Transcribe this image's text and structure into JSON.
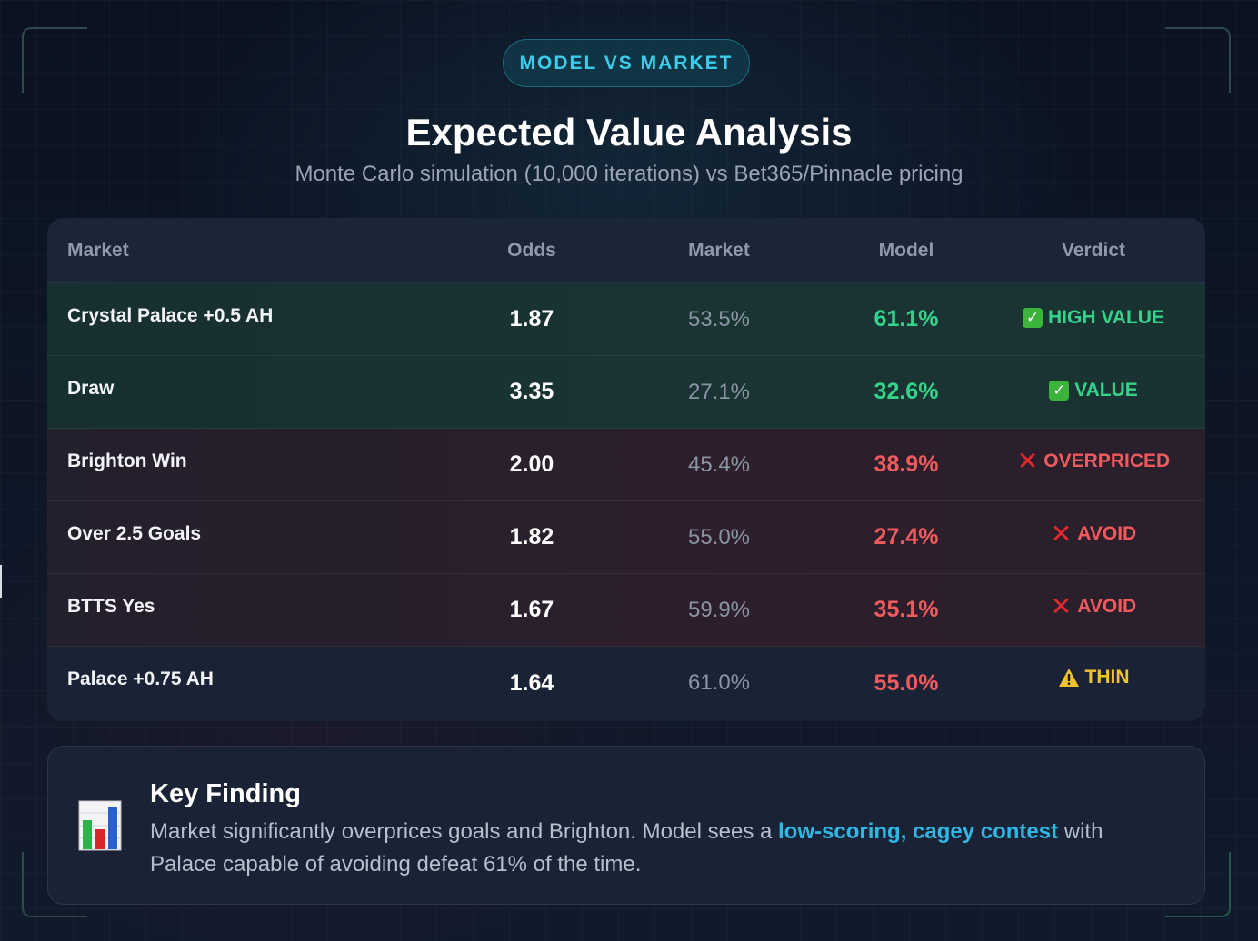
{
  "badge": "MODEL VS MARKET",
  "title": "Expected Value Analysis",
  "subtitle": "Monte Carlo simulation (10,000 iterations) vs Bet365/Pinnacle pricing",
  "table": {
    "headers": [
      "Market",
      "Odds",
      "Market",
      "Model",
      "Verdict"
    ],
    "rows": [
      {
        "market": "Crystal Palace +0.5 AH",
        "odds": "1.87",
        "market_prob": "53.5%",
        "model_prob": "61.1%",
        "verdict": "HIGH VALUE",
        "tone": "good",
        "icon": "check-icon"
      },
      {
        "market": "Draw",
        "odds": "3.35",
        "market_prob": "27.1%",
        "model_prob": "32.6%",
        "verdict": "VALUE",
        "tone": "good",
        "icon": "check-icon"
      },
      {
        "market": "Brighton Win",
        "odds": "2.00",
        "market_prob": "45.4%",
        "model_prob": "38.9%",
        "verdict": "OVERPRICED",
        "tone": "bad",
        "icon": "cross-icon"
      },
      {
        "market": "Over 2.5 Goals",
        "odds": "1.82",
        "market_prob": "55.0%",
        "model_prob": "27.4%",
        "verdict": "AVOID",
        "tone": "bad",
        "icon": "cross-icon"
      },
      {
        "market": "BTTS Yes",
        "odds": "1.67",
        "market_prob": "59.9%",
        "model_prob": "35.1%",
        "verdict": "AVOID",
        "tone": "bad",
        "icon": "cross-icon"
      },
      {
        "market": "Palace +0.75 AH",
        "odds": "1.64",
        "market_prob": "61.0%",
        "model_prob": "55.0%",
        "verdict": "THIN",
        "tone": "neutral",
        "icon": "warning-icon"
      }
    ]
  },
  "finding": {
    "icon": "bar-chart-icon",
    "title": "Key Finding",
    "text_before": "Market significantly overprices goals and Brighton. Model sees a ",
    "highlight": "low-scoring, cagey contest",
    "text_after": " with Palace capable of avoiding defeat 61% of the time."
  },
  "colors": {
    "accent": "#3ccbea",
    "good": "#35d38a",
    "bad": "#ef5a5e",
    "warn": "#f2c12e"
  }
}
